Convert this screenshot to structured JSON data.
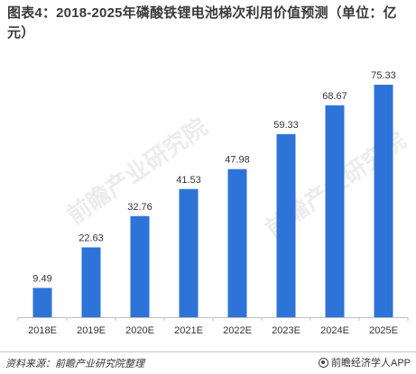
{
  "title": "图表4：2018-2025年磷酸铁锂电池梯次利用价值预测（单位：亿元）",
  "chart_data": {
    "type": "bar",
    "title": "图表4：2018-2025年磷酸铁锂电池梯次利用价值预测（单位：亿元）",
    "categories": [
      "2018E",
      "2019E",
      "2020E",
      "2021E",
      "2022E",
      "2023E",
      "2024E",
      "2025E"
    ],
    "series": [
      {
        "values": [
          9.49,
          22.63,
          32.76,
          41.53,
          47.98,
          59.33,
          68.67,
          75.33
        ]
      }
    ],
    "data_labels": [
      "9.49",
      "22.63",
      "32.76",
      "41.53",
      "47.98",
      "59.33",
      "68.67",
      "75.33"
    ],
    "ylim": [
      0,
      80
    ],
    "grid": false,
    "bar_color": "#2e73d8"
  },
  "footer": {
    "source": "资料来源：前瞻产业研究院整理",
    "brand": "前瞻经济学人APP"
  },
  "watermark": "前瞻产业研究院"
}
